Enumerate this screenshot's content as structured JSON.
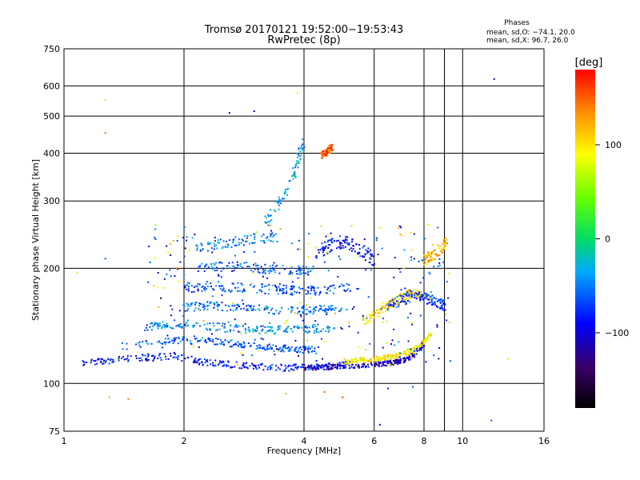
{
  "header": {
    "title": "Tromsø 20170121 19:52:00−19:53:43",
    "subtitle": "RwPretec (8p)"
  },
  "stats": {
    "heading": "Phases",
    "line_o": "mean, sd,O: −74.1, 20.0",
    "line_x": "mean, sd,X:  96.7, 26.0"
  },
  "chart_data": {
    "type": "scatter",
    "title": "Tromsø 20170121 19:52:00−19:53:43",
    "subtitle": "RwPretec (8p)",
    "xlabel": "Frequency [MHz]",
    "ylabel": "Stationary phase Virtual Height [km]",
    "x_scale": "log2",
    "y_scale": "log",
    "xlim": [
      1,
      16
    ],
    "ylim": [
      75,
      750
    ],
    "x_ticks": [
      1,
      2,
      4,
      6,
      8,
      9,
      10,
      16
    ],
    "x_tick_labels": [
      "1",
      "2",
      "4",
      "6",
      "8",
      "",
      "10",
      "16"
    ],
    "y_ticks": [
      75,
      100,
      200,
      300,
      400,
      500,
      600,
      750
    ],
    "grid": true,
    "colorbar": {
      "label": "[deg]",
      "ticks": [
        100,
        0,
        -100
      ],
      "range": [
        -180,
        180
      ]
    },
    "traces": [
      {
        "f": [
          1.12,
          1.3,
          1.6,
          1.9,
          2.2,
          2.6,
          3.0,
          3.5,
          4.0,
          4.6,
          5.2
        ],
        "h": [
          113,
          115,
          117,
          118,
          114,
          112,
          111,
          110,
          110,
          111,
          112
        ],
        "phase": -85,
        "spread": 4
      },
      {
        "f": [
          1.4,
          1.7,
          2.0,
          2.4,
          2.8,
          3.3,
          3.8,
          4.3
        ],
        "h": [
          125,
          128,
          130,
          129,
          126,
          124,
          123,
          122
        ],
        "phase": -60,
        "spread": 4
      },
      {
        "f": [
          1.6,
          1.8,
          2.1,
          2.5,
          3.0,
          3.5,
          4.2,
          4.8
        ],
        "h": [
          140,
          142,
          143,
          140,
          138,
          138,
          139,
          140
        ],
        "phase": -45,
        "spread": 5
      },
      {
        "f": [
          2.0,
          2.3,
          2.7,
          3.2,
          3.8,
          4.4,
          5.0
        ],
        "h": [
          158,
          160,
          158,
          156,
          155,
          156,
          158
        ],
        "phase": -55,
        "spread": 5
      },
      {
        "f": [
          2.0,
          2.3,
          2.8,
          3.3,
          3.9,
          4.5,
          5.2
        ],
        "h": [
          178,
          180,
          178,
          176,
          175,
          176,
          178
        ],
        "phase": -65,
        "spread": 6
      },
      {
        "f": [
          2.2,
          2.6,
          3.1,
          3.6,
          4.2
        ],
        "h": [
          200,
          203,
          200,
          198,
          197
        ],
        "phase": -60,
        "spread": 6
      },
      {
        "f": [
          2.1,
          2.5,
          2.9,
          3.4
        ],
        "h": [
          225,
          232,
          238,
          242
        ],
        "phase": -55,
        "spread": 6
      },
      {
        "f": [
          3.2,
          3.5,
          3.8,
          4.0
        ],
        "h": [
          260,
          300,
          360,
          430
        ],
        "phase": -40,
        "spread": 8
      },
      {
        "f": [
          4.3,
          4.7,
          5.1,
          5.5,
          6.0
        ],
        "h": [
          220,
          230,
          235,
          225,
          210
        ],
        "phase": -90,
        "spread": 8
      },
      {
        "f": [
          4.0,
          4.5,
          5.0,
          5.5,
          6.0,
          6.5,
          7.0,
          7.5,
          8.0
        ],
        "h": [
          110,
          110,
          111,
          111,
          112,
          113,
          114,
          118,
          126
        ],
        "phase": -110,
        "spread": 3
      },
      {
        "f": [
          5.0,
          5.5,
          6.0,
          6.5,
          7.0,
          7.5,
          8.0,
          8.3
        ],
        "h": [
          114,
          115,
          116,
          117,
          119,
          122,
          128,
          135
        ],
        "phase": 95,
        "spread": 3
      },
      {
        "f": [
          5.6,
          6.0,
          6.5,
          7.0,
          7.5,
          8.0
        ],
        "h": [
          145,
          152,
          160,
          168,
          172,
          170
        ],
        "phase": 105,
        "spread": 6
      },
      {
        "f": [
          6.5,
          7.0,
          7.5,
          8.0,
          8.5,
          9.0
        ],
        "h": [
          160,
          165,
          170,
          168,
          164,
          160
        ],
        "phase": -70,
        "spread": 6
      },
      {
        "f": [
          4.4,
          4.5,
          4.6,
          4.7
        ],
        "h": [
          395,
          400,
          405,
          415
        ],
        "phase": 150,
        "spread": 4
      },
      {
        "f": [
          8.0,
          8.3,
          8.7,
          9.1
        ],
        "h": [
          210,
          215,
          220,
          235
        ],
        "phase": 120,
        "spread": 6
      }
    ],
    "outliers": [
      {
        "f": 1.27,
        "h": 550,
        "phase": 60
      },
      {
        "f": 1.27,
        "h": 452,
        "phase": 150
      },
      {
        "f": 1.27,
        "h": 212,
        "phase": -60
      },
      {
        "f": 1.08,
        "h": 195,
        "phase": 100
      },
      {
        "f": 12.0,
        "h": 625,
        "phase": -100
      },
      {
        "f": 2.6,
        "h": 510,
        "phase": -100
      },
      {
        "f": 3.0,
        "h": 515,
        "phase": -90
      },
      {
        "f": 3.85,
        "h": 575,
        "phase": 80
      },
      {
        "f": 1.3,
        "h": 92,
        "phase": 120
      },
      {
        "f": 1.45,
        "h": 91,
        "phase": 140
      },
      {
        "f": 3.6,
        "h": 94,
        "phase": 120
      },
      {
        "f": 4.5,
        "h": 95,
        "phase": 150
      },
      {
        "f": 5.0,
        "h": 92,
        "phase": 160
      },
      {
        "f": 6.2,
        "h": 78,
        "phase": -100
      },
      {
        "f": 11.8,
        "h": 80,
        "phase": -60
      },
      {
        "f": 13.0,
        "h": 116,
        "phase": 100
      },
      {
        "f": 6.5,
        "h": 97,
        "phase": -80
      },
      {
        "f": 7.5,
        "h": 98,
        "phase": -60
      },
      {
        "f": 2.1,
        "h": 240,
        "phase": -30
      },
      {
        "f": 1.75,
        "h": 167,
        "phase": -140
      }
    ],
    "n_random": 300
  }
}
